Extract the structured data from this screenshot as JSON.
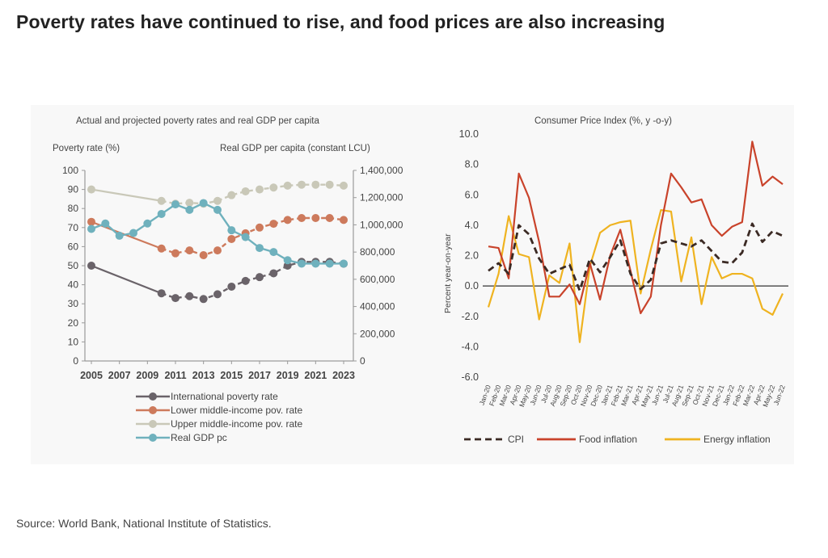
{
  "headline": "Poverty rates have continued to rise, and food prices are also increasing",
  "source": "Source: World Bank, National Institute of Statistics.",
  "colors": {
    "international": "#6a6369",
    "lower_middle": "#cd7a5c",
    "upper_middle": "#c9c8b8",
    "gdp": "#6fb1bd",
    "cpi": "#3b2a24",
    "food": "#c9432b",
    "energy": "#efb320",
    "axis": "#9a9a9a",
    "zero": "#333333"
  },
  "chart_data": [
    {
      "type": "line",
      "title": "Actual and projected poverty rates and real GDP per capita",
      "ylabel": "Poverty rate (%)",
      "y2label": "Real GDP per capita (constant LCU)",
      "ylim": [
        0,
        100
      ],
      "y2lim": [
        0,
        1400000
      ],
      "xlim": [
        2005,
        2023
      ],
      "yticks": [
        "0",
        "10",
        "20",
        "30",
        "40",
        "50",
        "60",
        "70",
        "80",
        "90",
        "100"
      ],
      "y2ticks": [
        "0",
        "200,000",
        "400,000",
        "600,000",
        "800,000",
        "1,000,000",
        "1,200,000",
        "1,400,000"
      ],
      "xticks": [
        "2005",
        "2007",
        "2009",
        "2011",
        "2013",
        "2015",
        "2017",
        "2019",
        "2021",
        "2023"
      ],
      "series": [
        {
          "name": "International poverty rate",
          "axis": "left",
          "actual": {
            "x": [
              2005,
              2010
            ],
            "y": [
              50,
              35.5
            ]
          },
          "projected": {
            "x": [
              2010,
              2011,
              2012,
              2013,
              2014,
              2015,
              2016,
              2017,
              2018,
              2019,
              2020,
              2021,
              2022,
              2023
            ],
            "y": [
              35.5,
              33,
              34,
              32.5,
              35,
              39,
              42,
              44,
              46,
              50,
              52,
              52,
              52,
              51
            ]
          }
        },
        {
          "name": "Lower middle-income pov. rate",
          "axis": "left",
          "actual": {
            "x": [
              2005,
              2010
            ],
            "y": [
              73,
              59
            ]
          },
          "projected": {
            "x": [
              2010,
              2011,
              2012,
              2013,
              2014,
              2015,
              2016,
              2017,
              2018,
              2019,
              2020,
              2021,
              2022,
              2023
            ],
            "y": [
              59,
              56.5,
              58,
              55.5,
              58,
              64,
              67,
              70,
              72,
              74,
              75,
              75,
              75,
              74
            ]
          }
        },
        {
          "name": "Upper middle-income pov. rate",
          "axis": "left",
          "actual": {
            "x": [
              2005,
              2010
            ],
            "y": [
              90,
              84
            ]
          },
          "projected": {
            "x": [
              2010,
              2011,
              2012,
              2013,
              2014,
              2015,
              2016,
              2017,
              2018,
              2019,
              2020,
              2021,
              2022,
              2023
            ],
            "y": [
              84,
              82.5,
              83,
              82.5,
              84,
              87,
              89,
              90,
              91,
              92,
              92.5,
              92.5,
              92.5,
              92
            ]
          }
        },
        {
          "name": "Real GDP pc",
          "axis": "right",
          "x": [
            2005,
            2006,
            2007,
            2008,
            2009,
            2010,
            2011,
            2012,
            2013,
            2014,
            2015,
            2016,
            2017,
            2018,
            2019,
            2020,
            2021,
            2022,
            2023
          ],
          "y": [
            970000,
            1010000,
            920000,
            940000,
            1010000,
            1080000,
            1150000,
            1110000,
            1160000,
            1110000,
            960000,
            910000,
            830000,
            800000,
            740000,
            715000,
            715000,
            715000,
            715000
          ]
        }
      ],
      "legend": [
        "International poverty rate",
        "Lower middle-income pov. rate",
        "Upper middle-income pov. rate",
        "Real GDP pc"
      ]
    },
    {
      "type": "line",
      "title": "Consumer Price Index (%, y -o-y)",
      "ylabel": "Percent year-on-year",
      "ylim": [
        -6,
        10
      ],
      "yticks": [
        "10.0",
        "8.0",
        "6.0",
        "4.0",
        "2.0",
        "0.0",
        "-2.0",
        "-4.0",
        "-6.0"
      ],
      "categories": [
        "Jan-20",
        "Feb-20",
        "Mar-20",
        "Apr-20",
        "May-20",
        "Jun-20",
        "Jul-20",
        "Aug-20",
        "Sep-20",
        "Oct-20",
        "Nov-20",
        "Dec-20",
        "Jan-21",
        "Feb-21",
        "Mar-21",
        "Apr-21",
        "May-21",
        "Jun-21",
        "Jul-21",
        "Aug-21",
        "Sep-21",
        "Oct-21",
        "Nov-21",
        "Dec-21",
        "Jan-22",
        "Feb-22",
        "Mar-22",
        "Apr-22",
        "May-22",
        "Jun-22"
      ],
      "series": [
        {
          "name": "CPI",
          "style": "dashed",
          "values": [
            1.0,
            1.5,
            0.8,
            4.0,
            3.4,
            1.8,
            0.8,
            1.1,
            1.4,
            -0.3,
            1.8,
            0.9,
            1.9,
            3.0,
            0.8,
            -0.2,
            0.4,
            2.8,
            3.0,
            2.8,
            2.6,
            3.0,
            2.3,
            1.6,
            1.5,
            2.2,
            4.1,
            2.9,
            3.6,
            3.3
          ]
        },
        {
          "name": "Food inflation",
          "style": "solid",
          "values": [
            2.6,
            2.5,
            0.5,
            7.4,
            5.8,
            2.9,
            -0.7,
            -0.7,
            0.1,
            -1.2,
            1.5,
            -0.9,
            2.0,
            3.7,
            1.0,
            -1.8,
            -0.7,
            4.0,
            7.4,
            6.5,
            5.5,
            5.7,
            4.0,
            3.3,
            3.9,
            4.2,
            9.5,
            6.6,
            7.2,
            6.7
          ]
        },
        {
          "name": "Energy inflation",
          "style": "solid",
          "values": [
            -1.4,
            0.8,
            4.6,
            2.1,
            1.9,
            -2.2,
            0.7,
            0.2,
            2.8,
            -3.7,
            1.3,
            3.5,
            4.0,
            4.2,
            4.3,
            -0.5,
            2.4,
            5.0,
            4.9,
            0.3,
            3.2,
            -1.2,
            1.9,
            0.5,
            0.8,
            0.8,
            0.5,
            -1.5,
            -1.9,
            -0.5
          ]
        }
      ],
      "legend": [
        "CPI",
        "Food inflation",
        "Energy inflation"
      ]
    }
  ]
}
